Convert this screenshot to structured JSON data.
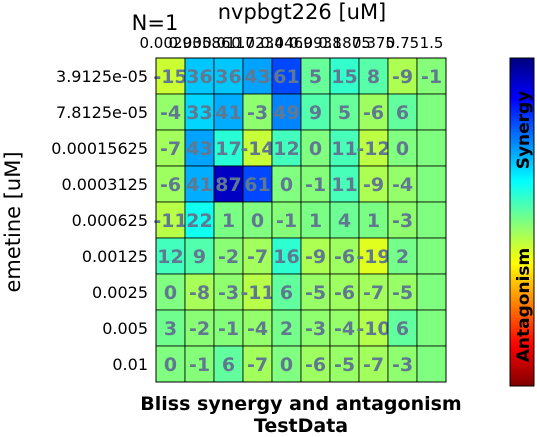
{
  "chart_data": {
    "type": "heatmap",
    "annotation": "N=1",
    "xlabel": "nvpbgt226 [uM]",
    "ylabel": "emetine [uM]",
    "title_lines": [
      "Bliss synergy and antagonism",
      "TestData"
    ],
    "x_ticks": [
      "0.00293",
      "0.00586",
      "0.0117",
      "0.0234",
      "0.0469",
      "0.0938",
      "0.1875",
      "0.375",
      "0.75",
      "1.5"
    ],
    "y_ticks": [
      "3.9125e-05",
      "7.8125e-05",
      "0.00015625",
      "0.0003125",
      "0.000625",
      "0.00125",
      "0.0025",
      "0.005",
      "0.01"
    ],
    "values": [
      [
        -15,
        36,
        36,
        43,
        61,
        5,
        15,
        8,
        -9,
        -1
      ],
      [
        -4,
        33,
        41,
        -3,
        49,
        9,
        5,
        -6,
        6,
        null
      ],
      [
        -7,
        43,
        17,
        -14,
        12,
        0,
        11,
        -12,
        0,
        null
      ],
      [
        -6,
        41,
        87,
        61,
        0,
        -1,
        11,
        -9,
        -4,
        null
      ],
      [
        -11,
        22,
        1,
        0,
        -1,
        1,
        4,
        1,
        -3,
        null
      ],
      [
        12,
        9,
        -2,
        -7,
        16,
        -9,
        -6,
        -19,
        2,
        null
      ],
      [
        0,
        -8,
        -3,
        -11,
        6,
        -5,
        -6,
        -7,
        -5,
        null
      ],
      [
        3,
        -2,
        -1,
        -4,
        2,
        -3,
        -4,
        -10,
        6,
        null
      ],
      [
        0,
        -1,
        6,
        -7,
        0,
        -6,
        -5,
        -7,
        -3,
        null
      ]
    ],
    "colorbar": {
      "range": [
        -100,
        100
      ],
      "top_label": "Synergy",
      "bottom_label": "Antagonism",
      "colormap": "jet"
    }
  }
}
